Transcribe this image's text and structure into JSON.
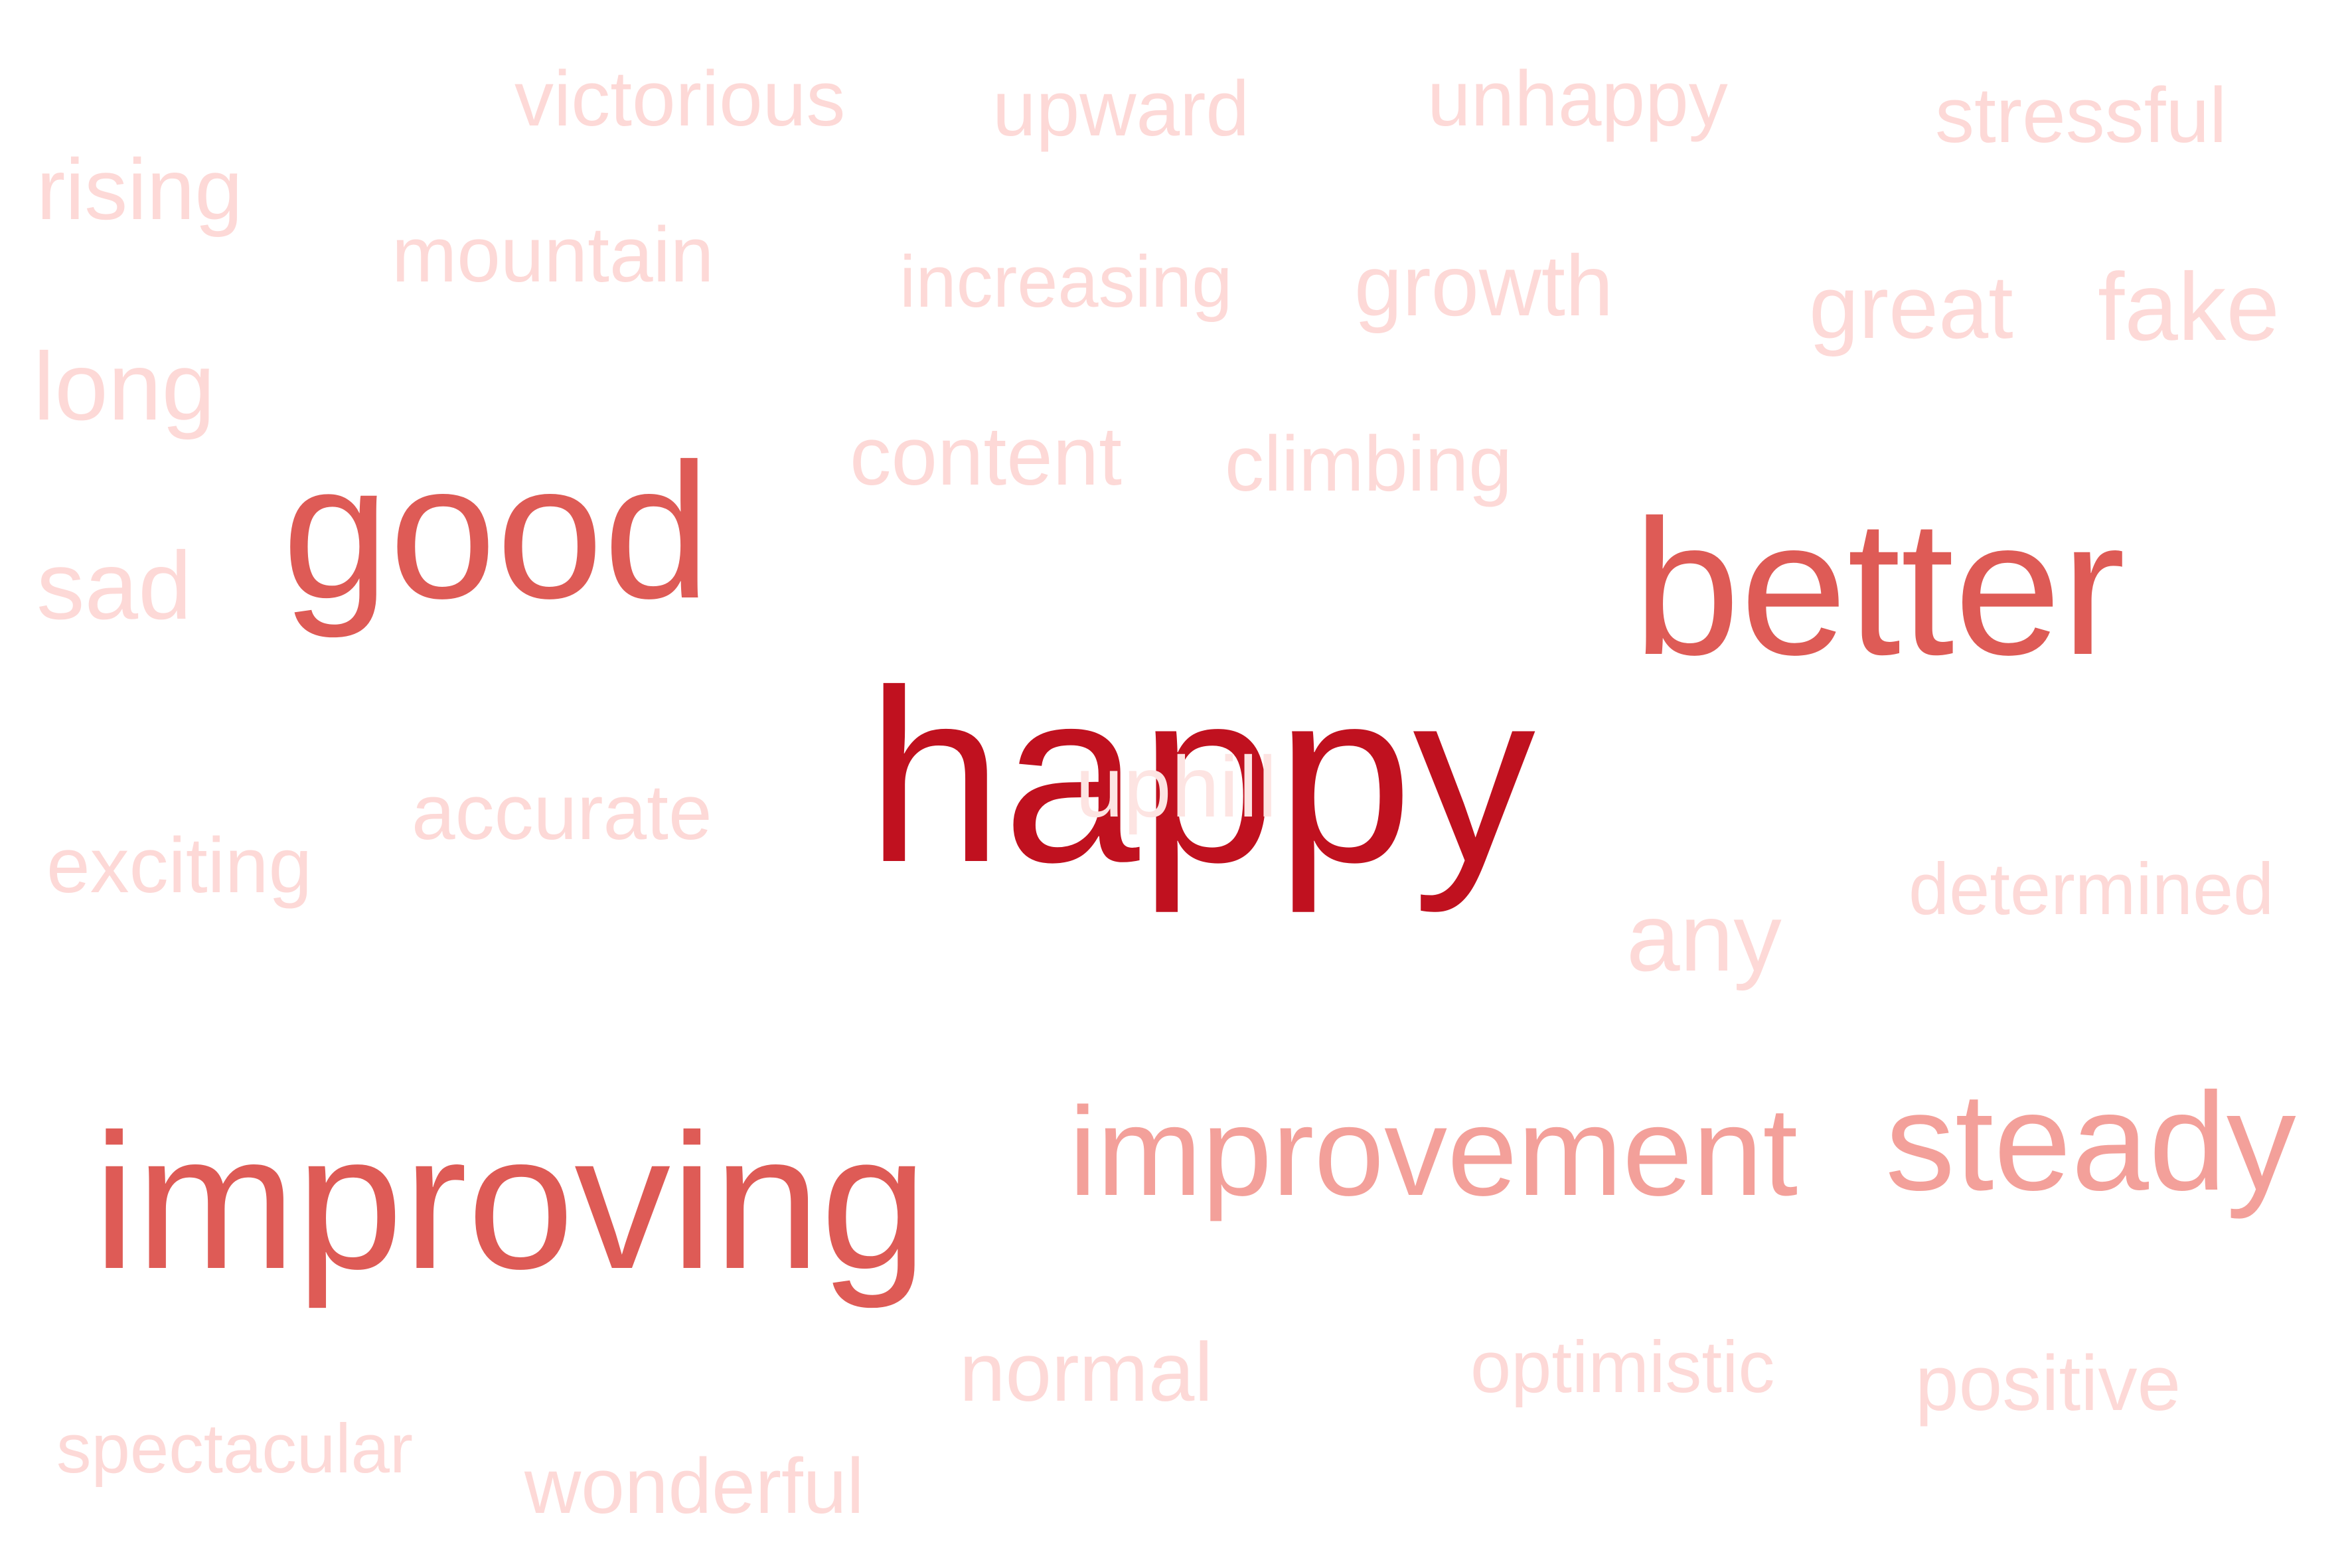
{
  "word_cloud": {
    "words": {
      "happy": "happy",
      "uphill": "uphill",
      "better": "better",
      "good": "good",
      "improving": "improving",
      "improvement": "improvement",
      "steady": "steady",
      "victorious": "victorious",
      "upward": "upward",
      "unhappy": "unhappy",
      "stressful": "stressful",
      "rising": "rising",
      "mountain": "mountain",
      "increasing": "increasing",
      "growth": "growth",
      "great": "great",
      "fake": "fake",
      "long": "long",
      "content": "content",
      "climbing": "climbing",
      "sad": "sad",
      "accurate": "accurate",
      "exciting": "exciting",
      "determined": "determined",
      "any": "any",
      "normal": "normal",
      "optimistic": "optimistic",
      "positive": "positive",
      "spectacular": "spectacular",
      "wonderful": "wonderful"
    },
    "colors": {
      "darkest": "#c0111f",
      "dark": "#de5b56",
      "medium": "#f3a09a",
      "light": "#fdd9d7",
      "background": "#ffffff"
    }
  }
}
